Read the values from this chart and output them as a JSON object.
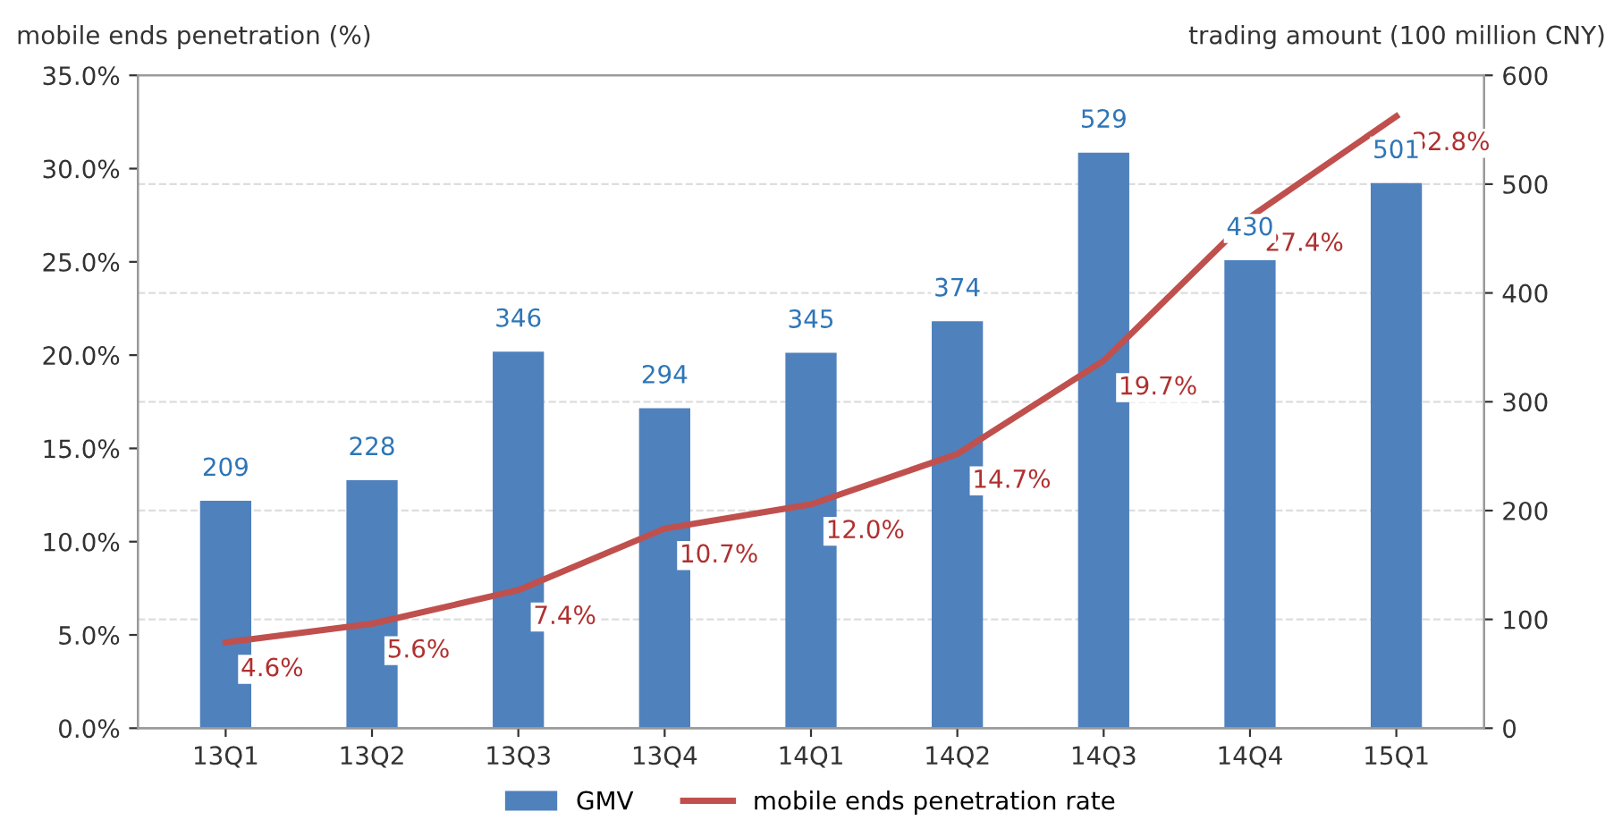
{
  "chart_data": {
    "type": "bar",
    "ylabel": "mobile ends penetration (%)",
    "y2label": "trading amount (100 million CNY)",
    "categories": [
      "13Q1",
      "13Q2",
      "13Q3",
      "13Q4",
      "14Q1",
      "14Q2",
      "14Q3",
      "14Q4",
      "15Q1"
    ],
    "series": [
      {
        "name": "GMV",
        "axis": "y2",
        "color": "#4f81bd",
        "values": [
          209,
          228,
          346,
          294,
          345,
          374,
          529,
          430,
          501
        ]
      },
      {
        "name": "mobile ends penetration rate",
        "type": "line",
        "axis": "y",
        "color": "#c0504d",
        "values": [
          4.6,
          5.6,
          7.4,
          10.7,
          12.0,
          14.7,
          19.7,
          27.4,
          32.8
        ],
        "value_labels": [
          "4.6%",
          "5.6%",
          "7.4%",
          "10.7%",
          "12.0%",
          "14.7%",
          "19.7%",
          "27.4%",
          "32.8%"
        ]
      }
    ],
    "ylim": [
      0,
      35
    ],
    "yticks": [
      {
        "value": 0,
        "label": "0.0%"
      },
      {
        "value": 5,
        "label": "5.0%"
      },
      {
        "value": 10,
        "label": "10.0%"
      },
      {
        "value": 15,
        "label": "15.0%"
      },
      {
        "value": 20,
        "label": "20.0%"
      },
      {
        "value": 25,
        "label": "25.0%"
      },
      {
        "value": 30,
        "label": "30.0%"
      },
      {
        "value": 35,
        "label": "35.0%"
      }
    ],
    "y2lim": [
      0,
      600
    ],
    "y2ticks": [
      0,
      100,
      200,
      300,
      400,
      500,
      600
    ],
    "data_labels": true,
    "grid": true,
    "legend": "bottom",
    "marker": "none",
    "line_style": "solid"
  }
}
